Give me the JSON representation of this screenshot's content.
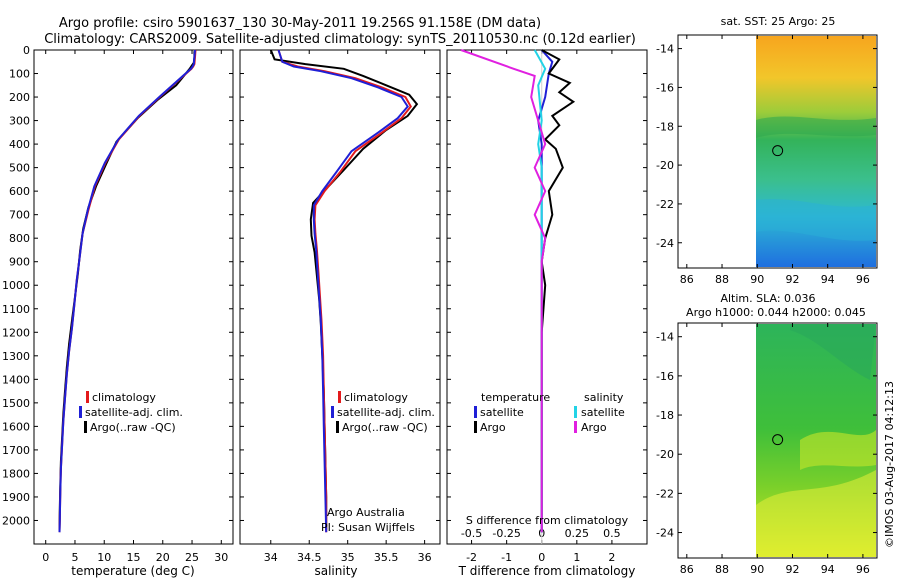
{
  "header": {
    "line1": "Argo profile: csiro 5901637_130 30-May-2011 19.256S 91.158E (DM data)",
    "line2": "Climatology: CARS2009. Satellite-adjusted climatology: synTS_20110530.nc (0.12d earlier)"
  },
  "colors": {
    "climatology": "#e31a1c",
    "satellite": "#1f1fd6",
    "argo": "#000000",
    "salinity_sat": "#22d3e6",
    "salinity_argo": "#e020e0"
  },
  "chart_data": [
    {
      "type": "line",
      "id": "temperature",
      "xlabel": "temperature (deg C)",
      "ylabel": "",
      "xlim": [
        -2,
        32
      ],
      "ylim": [
        2100,
        0
      ],
      "xticks": [
        0,
        5,
        10,
        15,
        20,
        25,
        30
      ],
      "yticks": [
        0,
        100,
        200,
        300,
        400,
        500,
        600,
        700,
        800,
        900,
        1000,
        1100,
        1200,
        1300,
        1400,
        1500,
        1600,
        1700,
        1800,
        1900,
        2000
      ],
      "legend": [
        "climatology",
        "satellite-adj. clim.",
        "Argo(..raw -QC)"
      ],
      "series": [
        {
          "name": "climatology",
          "x": [
            25.6,
            25.5,
            25.4,
            25.2,
            24.9,
            19.5,
            16.0,
            12.5,
            10.2,
            8.4,
            7.3,
            6.3,
            5.8,
            5.3,
            4.9,
            4.5,
            4.0,
            3.6,
            3.3,
            3.0,
            2.8,
            2.6,
            2.5,
            2.45,
            2.4,
            2.35
          ],
          "y": [
            0,
            30,
            60,
            70,
            80,
            200,
            280,
            380,
            480,
            580,
            680,
            780,
            880,
            980,
            1080,
            1180,
            1280,
            1380,
            1480,
            1580,
            1680,
            1780,
            1880,
            1950,
            2000,
            2050
          ]
        },
        {
          "name": "satellite-adj. clim.",
          "x": [
            25.5,
            25.4,
            25.3,
            25.1,
            24.8,
            19.4,
            15.9,
            12.4,
            10.1,
            8.3,
            7.2,
            6.3,
            5.8,
            5.3,
            4.9,
            4.5,
            4.0,
            3.6,
            3.3,
            3.0,
            2.8,
            2.6,
            2.5,
            2.45,
            2.4,
            2.35
          ],
          "y": [
            0,
            30,
            60,
            70,
            80,
            200,
            280,
            380,
            480,
            580,
            680,
            780,
            880,
            980,
            1080,
            1180,
            1280,
            1380,
            1480,
            1580,
            1680,
            1780,
            1880,
            1950,
            2000,
            2050
          ]
        },
        {
          "name": "Argo(..raw -QC)",
          "x": [
            25.4,
            25.4,
            25.3,
            25.0,
            24.6,
            22.3,
            19.2,
            15.7,
            12.1,
            10.4,
            8.6,
            7.3,
            6.4,
            5.9,
            5.5,
            5.0,
            4.5,
            4.0,
            3.6,
            3.3,
            3.0,
            2.8,
            2.6,
            2.5,
            2.4,
            2.35
          ],
          "y": [
            5,
            30,
            55,
            65,
            80,
            150,
            210,
            290,
            390,
            480,
            580,
            670,
            760,
            850,
            950,
            1050,
            1150,
            1250,
            1350,
            1450,
            1550,
            1650,
            1750,
            1850,
            1950,
            2040
          ]
        }
      ]
    },
    {
      "type": "line",
      "id": "salinity",
      "xlabel": "salinity",
      "ylabel": "",
      "xlim": [
        33.6,
        36.2
      ],
      "ylim": [
        2100,
        0
      ],
      "xticks": [
        34,
        34.5,
        35,
        35.5,
        36
      ],
      "legend": [
        "climatology",
        "satellite-adj. clim.",
        "Argo(..raw -QC)"
      ],
      "annotation": [
        "Argo Australia",
        "PI: Susan Wijffels"
      ],
      "series": [
        {
          "name": "climatology",
          "x": [
            34.1,
            34.15,
            34.35,
            34.7,
            35.1,
            35.45,
            35.75,
            35.82,
            35.7,
            35.45,
            35.1,
            34.9,
            34.7,
            34.58,
            34.57,
            34.58,
            34.6,
            34.62,
            34.64,
            34.66,
            34.68,
            34.69,
            34.7,
            34.71,
            34.72,
            34.72
          ],
          "y": [
            0,
            50,
            70,
            90,
            120,
            160,
            200,
            240,
            290,
            350,
            430,
            520,
            600,
            660,
            720,
            780,
            850,
            950,
            1050,
            1150,
            1300,
            1450,
            1600,
            1750,
            1900,
            2050
          ]
        },
        {
          "name": "satellite-adj. clim.",
          "x": [
            34.1,
            34.15,
            34.3,
            34.65,
            35.05,
            35.4,
            35.7,
            35.78,
            35.65,
            35.4,
            35.05,
            34.85,
            34.67,
            34.56,
            34.56,
            34.57,
            34.59,
            34.61,
            34.63,
            34.65,
            34.67,
            34.68,
            34.69,
            34.7,
            34.71,
            34.72
          ],
          "y": [
            0,
            50,
            70,
            90,
            120,
            160,
            200,
            240,
            290,
            350,
            430,
            520,
            600,
            660,
            720,
            780,
            850,
            950,
            1050,
            1150,
            1300,
            1450,
            1600,
            1750,
            1900,
            2050
          ]
        },
        {
          "name": "Argo(..raw -QC)",
          "x": [
            34.0,
            34.05,
            34.45,
            34.95,
            35.2,
            35.5,
            35.8,
            35.9,
            35.78,
            35.5,
            35.2,
            34.95,
            34.72,
            34.55,
            34.52,
            34.53,
            34.57,
            34.6,
            34.63,
            34.65,
            34.67,
            34.69,
            34.7,
            34.71,
            34.72,
            34.72
          ],
          "y": [
            0,
            40,
            60,
            80,
            110,
            150,
            190,
            230,
            280,
            340,
            420,
            510,
            590,
            650,
            720,
            790,
            860,
            960,
            1060,
            1160,
            1300,
            1450,
            1600,
            1750,
            1900,
            2040
          ]
        }
      ]
    },
    {
      "type": "line",
      "id": "difference",
      "xlabel": "T difference from climatology",
      "xlabel2": "S difference from climatology",
      "xlim": [
        -2.7,
        3.0
      ],
      "ylim": [
        2100,
        0
      ],
      "xticks": [
        -2,
        -1,
        0,
        1,
        2
      ],
      "xticks2": [
        -0.5,
        -0.25,
        0,
        0.25,
        0.5
      ],
      "legend": {
        "temperature_title": "temperature",
        "salinity_title": "salinity",
        "satellite": "satellite",
        "argo": "Argo"
      },
      "series": [
        {
          "name": "temperature satellite",
          "x": [
            0.0,
            0.3,
            0.2,
            0.1,
            -0.1,
            0.0,
            0.0,
            0.0,
            0.0,
            0.0,
            0.0,
            0.0,
            0.0,
            0.0,
            0.0
          ],
          "y": [
            0,
            50,
            100,
            200,
            300,
            400,
            500,
            600,
            700,
            800,
            900,
            1100,
            1400,
            1700,
            2050
          ]
        },
        {
          "name": "temperature Argo",
          "x": [
            0.0,
            0.5,
            0.2,
            0.8,
            0.5,
            0.9,
            0.3,
            0.5,
            0.1,
            0.4,
            0.6,
            0.2,
            0.3,
            0.1,
            0.0,
            0.1,
            0.0,
            0.0,
            0.0
          ],
          "y": [
            0,
            40,
            100,
            140,
            180,
            220,
            280,
            320,
            380,
            420,
            500,
            600,
            700,
            800,
            900,
            1000,
            1200,
            1500,
            2050
          ]
        },
        {
          "name": "salinity satellite",
          "x": [
            -0.2,
            0.1,
            -0.1,
            0.0,
            -0.1,
            0.0,
            0.0,
            0.0,
            0.0,
            0.0,
            0.0,
            0.0,
            0.0,
            0.0
          ],
          "y": [
            0,
            80,
            150,
            300,
            400,
            500,
            600,
            700,
            800,
            900,
            1100,
            1400,
            1700,
            2050
          ]
        },
        {
          "name": "salinity Argo",
          "x": [
            -2.3,
            -0.8,
            -0.2,
            -0.3,
            -0.1,
            0.1,
            -0.2,
            0.1,
            -0.2,
            0.1,
            0.0,
            0.0,
            0.0,
            0.0,
            0.0
          ],
          "y": [
            0,
            80,
            110,
            200,
            300,
            400,
            500,
            600,
            700,
            800,
            900,
            1100,
            1400,
            1700,
            2050
          ]
        }
      ]
    },
    {
      "type": "heatmap",
      "id": "sst_map",
      "title": "sat. SST: 25 Argo: 25",
      "xticks": [
        86,
        88,
        90,
        92,
        94,
        96
      ],
      "yticks": [
        -14,
        -16,
        -18,
        -20,
        -22,
        -24
      ],
      "xlim": [
        85.5,
        96.8
      ],
      "ylim": [
        -25.3,
        -13.3
      ],
      "marker": {
        "lon": 91.158,
        "lat": -19.256
      }
    },
    {
      "type": "heatmap",
      "id": "sla_map",
      "title": "Altim. SLA: 0.036",
      "subtitle": "Argo h1000: 0.044 h2000: 0.045",
      "xticks": [
        86,
        88,
        90,
        92,
        94,
        96
      ],
      "yticks": [
        -14,
        -16,
        -18,
        -20,
        -22,
        -24
      ],
      "xlim": [
        85.5,
        96.8
      ],
      "ylim": [
        -25.3,
        -13.3
      ],
      "marker": {
        "lon": 91.158,
        "lat": -19.256
      }
    }
  ],
  "credit": "©IMOS 03-Aug-2017 04:12:13"
}
